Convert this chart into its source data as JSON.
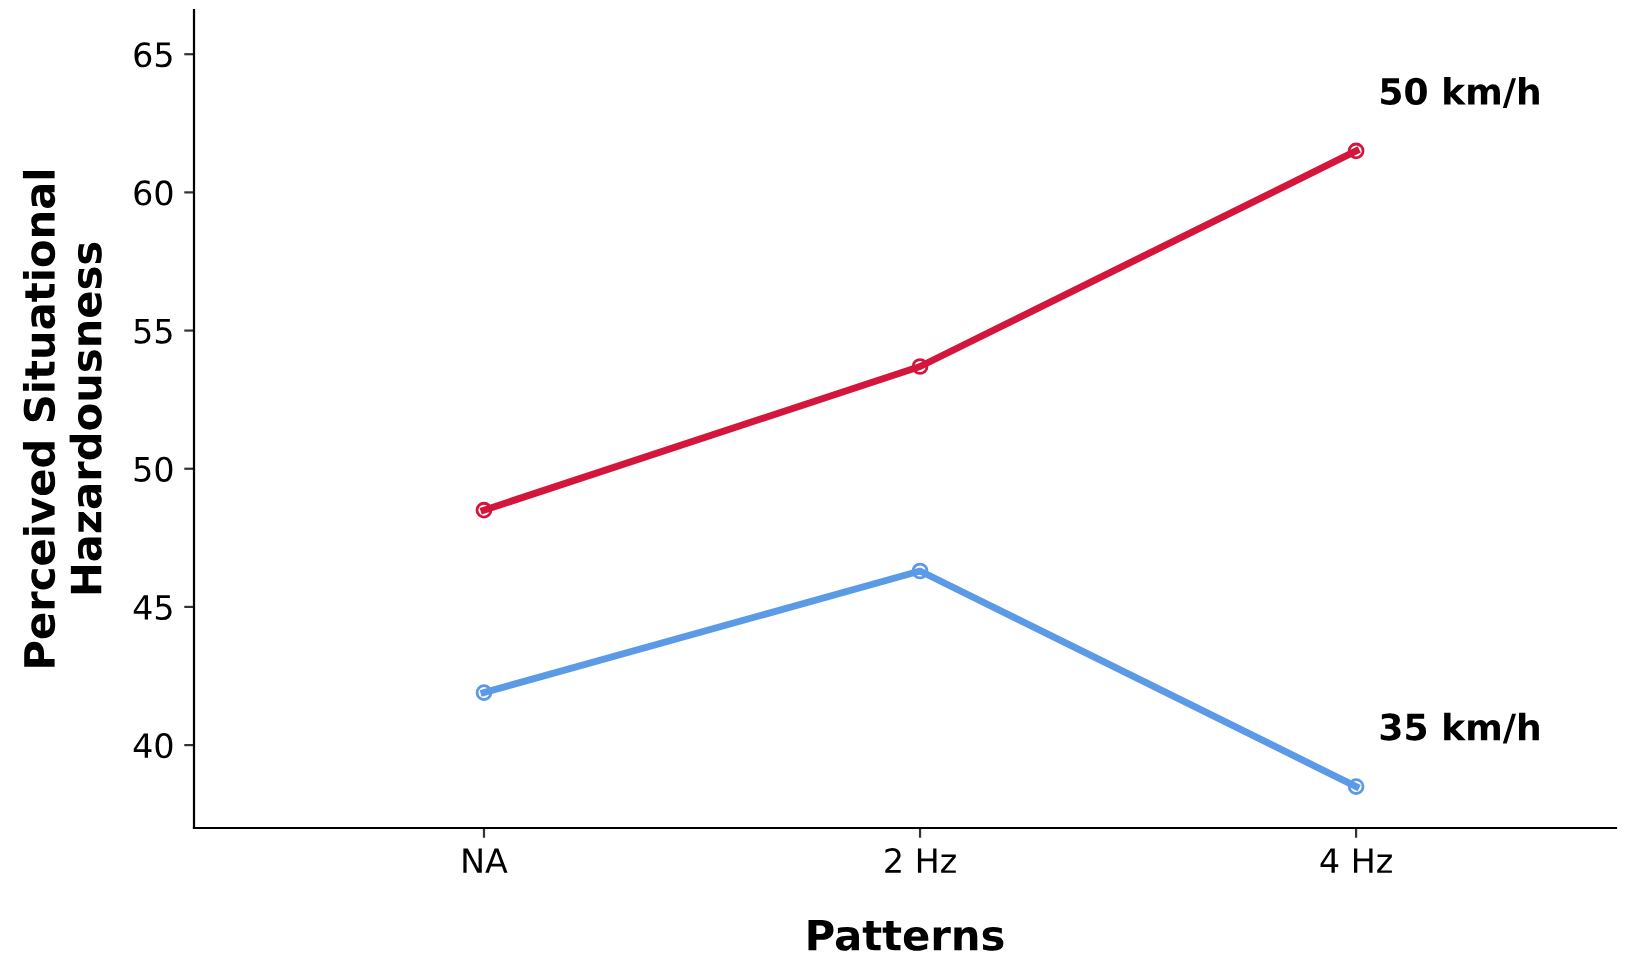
{
  "chart_data": {
    "type": "line",
    "xlabel": "Patterns",
    "ylabel": "Perceived Situational\nHazardousness",
    "categories": [
      "NA",
      "2 Hz",
      "4 Hz"
    ],
    "series": [
      {
        "name": "50 km/h",
        "color": "#d4163c",
        "values": [
          48.5,
          53.7,
          61.5
        ]
      },
      {
        "name": "35 km/h",
        "color": "#5b9ae6",
        "values": [
          41.9,
          46.3,
          38.5
        ]
      }
    ],
    "ylim": [
      37,
      66.6
    ],
    "yticks": [
      40,
      45,
      50,
      55,
      60,
      65
    ],
    "grid": false,
    "legend": false,
    "marker": "circle",
    "line_style": "solid"
  }
}
